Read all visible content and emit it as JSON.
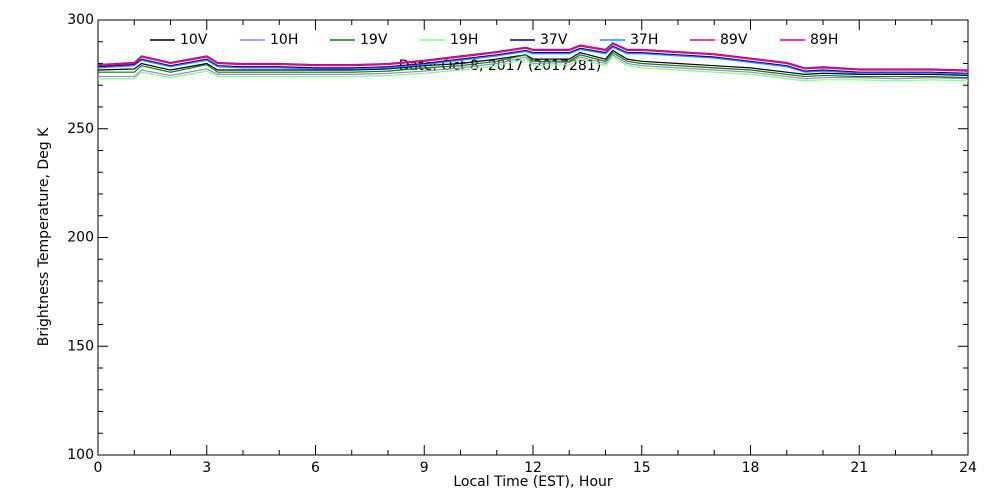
{
  "chart_data": {
    "type": "line",
    "annotation": "Date: Oct  8, 2017 (2017281)",
    "x_label": "Local Time (EST), Hour",
    "y_label": "Brightness Temperature, Deg K",
    "xlim": [
      0,
      24
    ],
    "xticks": [
      0,
      3,
      6,
      9,
      12,
      15,
      18,
      21,
      24
    ],
    "ylim": [
      100,
      300
    ],
    "yticks": [
      100,
      150,
      200,
      250,
      300
    ],
    "x": [
      0,
      1,
      1.2,
      2,
      3,
      3.3,
      4,
      5,
      6,
      7,
      8,
      9,
      10,
      11,
      11.8,
      12,
      13,
      13.3,
      14,
      14.2,
      14.6,
      15,
      16,
      17,
      18,
      19,
      19.5,
      20,
      21,
      22,
      23,
      24
    ],
    "series": [
      {
        "name": "10V",
        "color": "#000000",
        "values": [
          277,
          277.5,
          280,
          277,
          280,
          277,
          277,
          277,
          277,
          277,
          277.5,
          279,
          280,
          282,
          284,
          282,
          282,
          285,
          282,
          286,
          282,
          281,
          280,
          279,
          278,
          276,
          275,
          275.5,
          275,
          275,
          275,
          274.5
        ]
      },
      {
        "name": "10H",
        "color": "#a080d0",
        "values": [
          274,
          274,
          277,
          274.5,
          277.5,
          275,
          275,
          275,
          275,
          275,
          275.5,
          276.5,
          278,
          280,
          283,
          280,
          280.5,
          283,
          280,
          284,
          280,
          279,
          278,
          277,
          276,
          274,
          273,
          273.5,
          273.5,
          273,
          273.5,
          273
        ]
      },
      {
        "name": "19V",
        "color": "#008000",
        "values": [
          276,
          276,
          279,
          276,
          279.5,
          276,
          276,
          276,
          276,
          276,
          276.5,
          278,
          279,
          281,
          284,
          281,
          281,
          284,
          281,
          285,
          281,
          280,
          279,
          278,
          277,
          275,
          274,
          274.5,
          274,
          274,
          274,
          273.5
        ]
      },
      {
        "name": "19H",
        "color": "#80ff80",
        "values": [
          273,
          273,
          276,
          273.5,
          276.5,
          274,
          274,
          274,
          274,
          274,
          274.5,
          275.5,
          277,
          279,
          282,
          279,
          279.5,
          282,
          279,
          283,
          279,
          278,
          277,
          276,
          275,
          273,
          272,
          272.5,
          272.5,
          272,
          272.5,
          272
        ]
      },
      {
        "name": "37V",
        "color": "#000080",
        "values": [
          278.5,
          279.5,
          282,
          279,
          282,
          279,
          278.5,
          278.5,
          278,
          278,
          278.5,
          280,
          282,
          284,
          286,
          285,
          285,
          287,
          285,
          288,
          285,
          285,
          284,
          283,
          281,
          279,
          276.5,
          277,
          276,
          276,
          276,
          275.5
        ]
      },
      {
        "name": "37H",
        "color": "#1e90ff",
        "values": [
          278,
          279,
          281.5,
          278.5,
          281.5,
          278.5,
          278,
          278,
          277.5,
          277.5,
          278,
          279.5,
          281.5,
          283.5,
          285.5,
          284.5,
          284.5,
          286.5,
          284.5,
          287.5,
          284.5,
          284.5,
          283.5,
          282.5,
          280.5,
          278.5,
          276,
          276.5,
          275.5,
          275.5,
          275.5,
          275
        ]
      },
      {
        "name": "89V",
        "color": "#d01050",
        "values": [
          279,
          280,
          283,
          280,
          283,
          280,
          279.5,
          279.5,
          279,
          279,
          279.5,
          281,
          283,
          285,
          287,
          286,
          286,
          288,
          286,
          289,
          286,
          286,
          285,
          284,
          282,
          280,
          277.5,
          278,
          277,
          277,
          277,
          276.5
        ]
      },
      {
        "name": "89H",
        "color": "#c000c0",
        "values": [
          279.5,
          280.5,
          283.5,
          280.5,
          283.5,
          280.5,
          280,
          280,
          279.5,
          279.5,
          280,
          281.5,
          283.5,
          285.5,
          287.5,
          286.5,
          286.5,
          288.5,
          286.5,
          289.5,
          286.5,
          286.5,
          285.5,
          284.5,
          282.5,
          280.5,
          278,
          278.5,
          277.5,
          277.5,
          277.5,
          277
        ]
      }
    ]
  }
}
